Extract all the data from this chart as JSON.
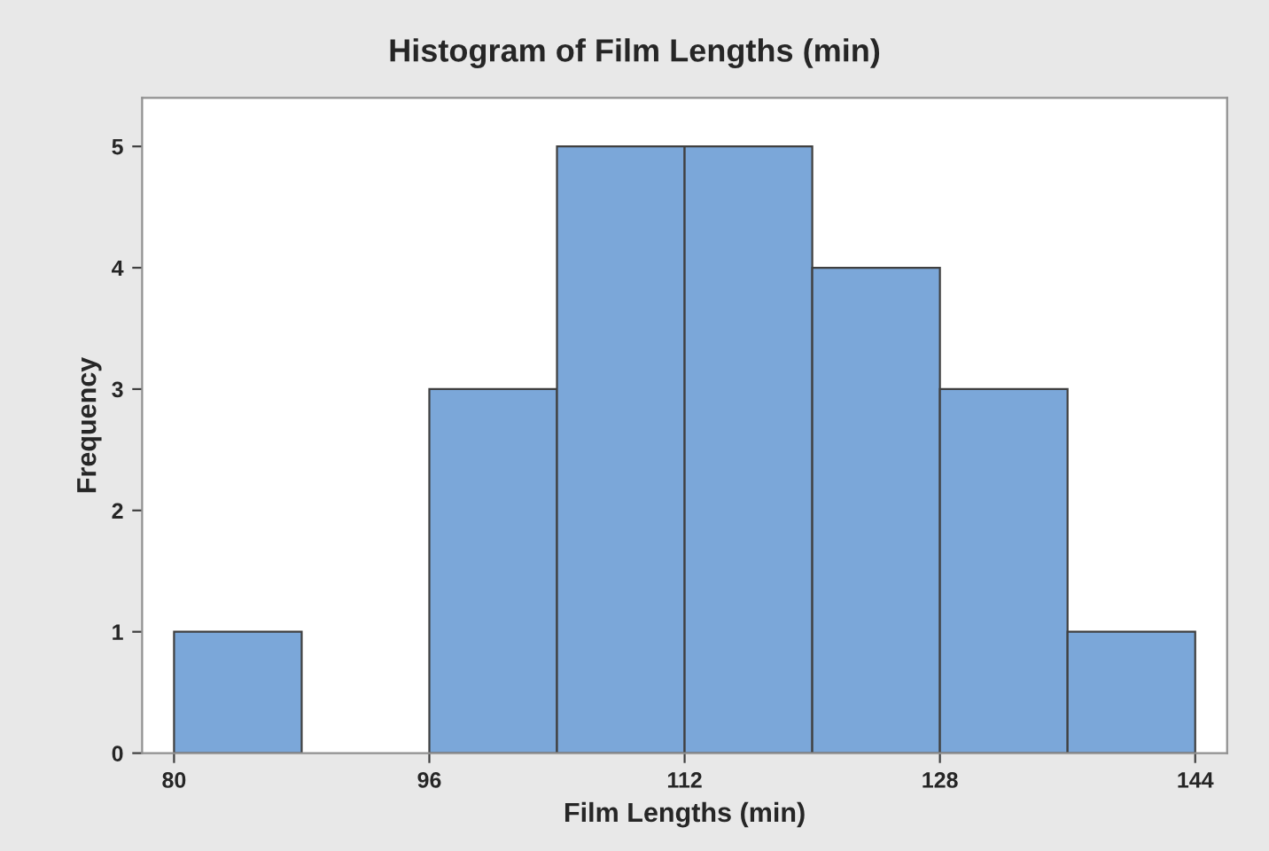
{
  "chart_data": {
    "type": "histogram",
    "title": "Histogram of Film Lengths (min)",
    "xlabel": "Film Lengths (min)",
    "ylabel": "Frequency",
    "bins": [
      80,
      88,
      96,
      104,
      112,
      120,
      128,
      136,
      144
    ],
    "values": [
      1,
      0,
      3,
      5,
      5,
      4,
      3,
      1
    ],
    "color": "#7ba7d9",
    "xlim": [
      78,
      146
    ],
    "xticks": [
      80,
      96,
      112,
      128,
      144
    ],
    "ylim": [
      0,
      5.4
    ],
    "yticks": [
      0,
      1,
      2,
      3,
      4,
      5
    ],
    "grid": false
  }
}
